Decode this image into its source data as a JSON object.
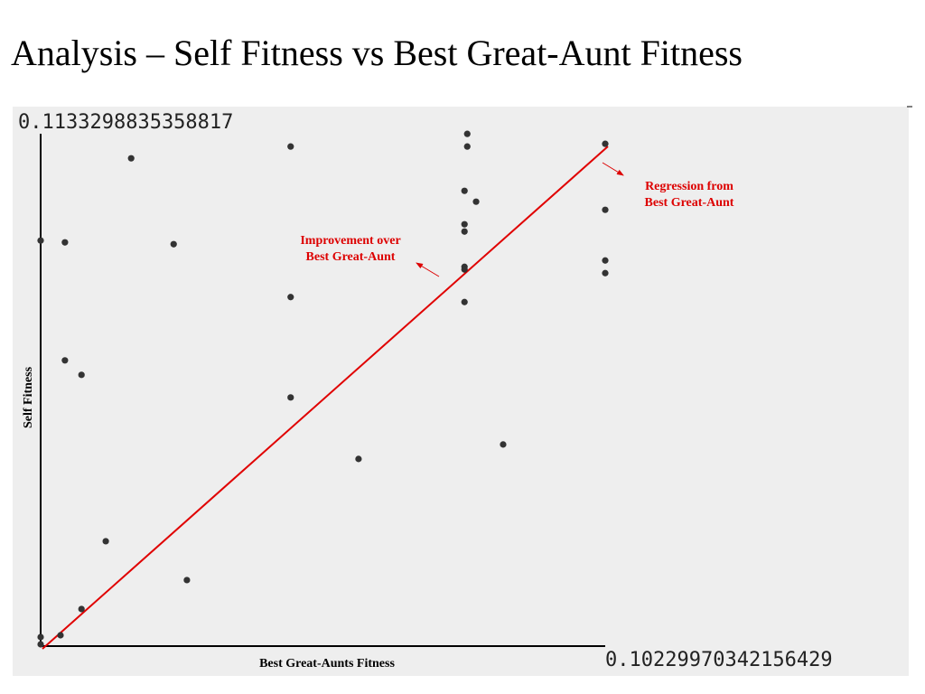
{
  "chart_data": {
    "type": "scatter",
    "title": "Analysis – Self Fitness vs Best Great-Aunt Fitness",
    "x_label": "Best Great-Aunts Fitness",
    "y_label": "Self Fitness",
    "xlim": [
      0,
      0.10229970342156429
    ],
    "ylim": [
      0,
      0.1133298835358817
    ],
    "xticks": [
      {
        "value": 0.10229970342156429,
        "label": "0.10229970342156429"
      }
    ],
    "yticks": [
      {
        "value": 0.1133298835358817,
        "label": "0.1133298835358817"
      }
    ],
    "color": "#333333",
    "annotations": [
      [
        "Improvement over",
        "Best Great-Aunt"
      ],
      [
        "Regression from",
        "Best Great-Aunt"
      ]
    ],
    "x": [
      0,
      0,
      0,
      0.0036,
      0.0044,
      0.0044,
      0.0074,
      0.0074,
      0.0118,
      0.0164,
      0.0241,
      0.0265,
      0.0453,
      0.0453,
      0.0453,
      0.0576,
      0.0768,
      0.0768,
      0.0768,
      0.0768,
      0.0768,
      0.0768,
      0.0773,
      0.0773,
      0.0789,
      0.0838,
      0.1023,
      0.1023,
      0.1023,
      0.1023
    ],
    "y": [
      0.0897,
      0.002,
      0.0004,
      0.0024,
      0.0893,
      0.0632,
      0.06,
      0.0082,
      0.0232,
      0.1079,
      0.0889,
      0.0146,
      0.1105,
      0.0772,
      0.055,
      0.0414,
      0.1007,
      0.0933,
      0.0917,
      0.0839,
      0.0833,
      0.0761,
      0.1133,
      0.1105,
      0.0983,
      0.0446,
      0.1111,
      0.0965,
      0.0853,
      0.0825
    ]
  }
}
